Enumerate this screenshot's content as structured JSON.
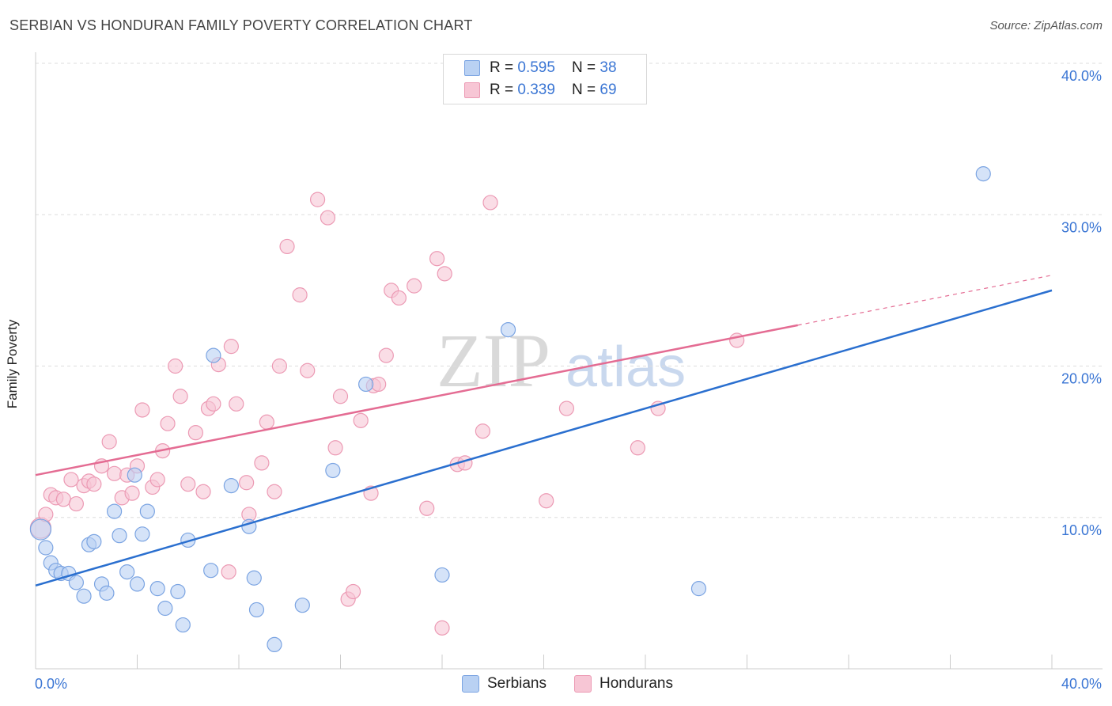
{
  "header": {
    "title": "SERBIAN VS HONDURAN FAMILY POVERTY CORRELATION CHART",
    "source": "Source: ZipAtlas.com"
  },
  "legend": {
    "serbian": {
      "r_label": "R = ",
      "r_value": "0.595",
      "n_label": "N = ",
      "n_value": "38"
    },
    "honduran": {
      "r_label": "R = ",
      "r_value": "0.339",
      "n_label": "N = ",
      "n_value": "69"
    }
  },
  "bottom_legend": {
    "serbians": "Serbians",
    "hondurans": "Hondurans"
  },
  "watermark": {
    "zip": "ZIP",
    "atlas": "atlas"
  },
  "colors": {
    "serbian_fill": "#b9d1f3",
    "serbian_stroke": "#7ba4e2",
    "serbian_line": "#2a6fcf",
    "honduran_fill": "#f7c6d5",
    "honduran_stroke": "#ec9ab4",
    "honduran_line": "#e46c93",
    "axis_text": "#3b76d4",
    "grid": "#dddddd"
  },
  "chart_data": {
    "type": "scatter",
    "title": "SERBIAN VS HONDURAN FAMILY POVERTY CORRELATION CHART",
    "xlabel": "",
    "ylabel": "Family Poverty",
    "xlim": [
      0,
      40
    ],
    "ylim": [
      0,
      40
    ],
    "x_tick_labels": [
      "0.0%",
      "40.0%"
    ],
    "y_tick_values": [
      10,
      20,
      30,
      40
    ],
    "y_tick_labels": [
      "10.0%",
      "20.0%",
      "30.0%",
      "40.0%"
    ],
    "grid": "horizontal dashed",
    "legend_position": "top-center",
    "series": [
      {
        "name": "Serbians",
        "r": 0.595,
        "n": 38,
        "trend": {
          "x": [
            0,
            40
          ],
          "y": [
            5.5,
            25.0
          ]
        },
        "points": [
          [
            0.2,
            9.2
          ],
          [
            0.4,
            8.0
          ],
          [
            0.6,
            7.0
          ],
          [
            0.8,
            6.5
          ],
          [
            1.0,
            6.3
          ],
          [
            1.3,
            6.3
          ],
          [
            1.6,
            5.7
          ],
          [
            1.9,
            4.8
          ],
          [
            2.1,
            8.2
          ],
          [
            2.3,
            8.4
          ],
          [
            2.6,
            5.6
          ],
          [
            2.8,
            5.0
          ],
          [
            3.1,
            10.4
          ],
          [
            3.3,
            8.8
          ],
          [
            3.6,
            6.4
          ],
          [
            3.9,
            12.8
          ],
          [
            4.0,
            5.6
          ],
          [
            4.2,
            8.9
          ],
          [
            4.4,
            10.4
          ],
          [
            4.8,
            5.3
          ],
          [
            5.1,
            4.0
          ],
          [
            5.6,
            5.1
          ],
          [
            5.8,
            2.9
          ],
          [
            6.0,
            8.5
          ],
          [
            6.9,
            6.5
          ],
          [
            7.0,
            20.7
          ],
          [
            7.7,
            12.1
          ],
          [
            8.4,
            9.4
          ],
          [
            8.6,
            6.0
          ],
          [
            8.7,
            3.9
          ],
          [
            9.4,
            1.6
          ],
          [
            10.5,
            4.2
          ],
          [
            11.7,
            13.1
          ],
          [
            13.0,
            18.8
          ],
          [
            16.0,
            6.2
          ],
          [
            18.6,
            22.4
          ],
          [
            26.1,
            5.3
          ],
          [
            37.3,
            32.7
          ]
        ]
      },
      {
        "name": "Hondurans",
        "r": 0.339,
        "n": 69,
        "trend": {
          "x": [
            0,
            30.0
          ],
          "y": [
            12.8,
            22.7
          ]
        },
        "trend_dashed": {
          "x": [
            30.0,
            40
          ],
          "y": [
            22.7,
            26.0
          ]
        },
        "points": [
          [
            0.2,
            9.3
          ],
          [
            0.4,
            10.2
          ],
          [
            0.6,
            11.5
          ],
          [
            0.8,
            11.3
          ],
          [
            1.1,
            11.2
          ],
          [
            1.4,
            12.5
          ],
          [
            1.6,
            10.9
          ],
          [
            1.9,
            12.1
          ],
          [
            2.1,
            12.4
          ],
          [
            2.3,
            12.2
          ],
          [
            2.6,
            13.4
          ],
          [
            2.9,
            15.0
          ],
          [
            3.1,
            12.9
          ],
          [
            3.4,
            11.3
          ],
          [
            3.6,
            12.8
          ],
          [
            3.8,
            11.6
          ],
          [
            4.0,
            13.4
          ],
          [
            4.2,
            17.1
          ],
          [
            4.6,
            12.0
          ],
          [
            4.8,
            12.5
          ],
          [
            5.0,
            14.4
          ],
          [
            5.2,
            16.2
          ],
          [
            5.5,
            20.0
          ],
          [
            5.7,
            18.0
          ],
          [
            6.0,
            12.2
          ],
          [
            6.3,
            15.6
          ],
          [
            6.6,
            11.7
          ],
          [
            6.8,
            17.2
          ],
          [
            7.0,
            17.5
          ],
          [
            7.2,
            20.1
          ],
          [
            7.6,
            6.4
          ],
          [
            7.7,
            21.3
          ],
          [
            7.9,
            17.5
          ],
          [
            8.3,
            12.3
          ],
          [
            8.4,
            10.2
          ],
          [
            8.9,
            13.6
          ],
          [
            9.1,
            16.3
          ],
          [
            9.4,
            11.7
          ],
          [
            9.6,
            20.0
          ],
          [
            9.9,
            27.9
          ],
          [
            10.4,
            24.7
          ],
          [
            10.7,
            19.7
          ],
          [
            11.1,
            31.0
          ],
          [
            11.5,
            29.8
          ],
          [
            11.8,
            14.6
          ],
          [
            12.0,
            18.0
          ],
          [
            12.3,
            4.6
          ],
          [
            12.5,
            5.1
          ],
          [
            12.8,
            16.4
          ],
          [
            13.2,
            11.6
          ],
          [
            13.3,
            18.7
          ],
          [
            13.5,
            18.8
          ],
          [
            13.8,
            20.7
          ],
          [
            14.0,
            25.0
          ],
          [
            14.3,
            24.5
          ],
          [
            14.9,
            25.3
          ],
          [
            15.4,
            10.6
          ],
          [
            15.8,
            27.1
          ],
          [
            16.0,
            2.7
          ],
          [
            16.1,
            26.1
          ],
          [
            16.6,
            13.5
          ],
          [
            16.9,
            13.6
          ],
          [
            17.6,
            15.7
          ],
          [
            17.9,
            30.8
          ],
          [
            20.1,
            11.1
          ],
          [
            20.9,
            17.2
          ],
          [
            23.7,
            14.6
          ],
          [
            24.5,
            17.2
          ],
          [
            27.6,
            21.7
          ]
        ]
      }
    ]
  }
}
